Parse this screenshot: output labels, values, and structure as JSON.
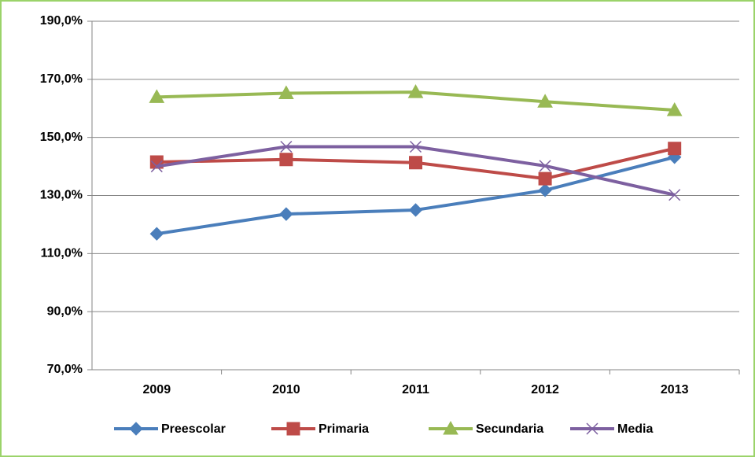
{
  "chart_data": {
    "type": "line",
    "categories": [
      "2009",
      "2010",
      "2011",
      "2012",
      "2013"
    ],
    "series": [
      {
        "name": "Preescolar",
        "color": "#4a7ebb",
        "marker": "diamond",
        "values": [
          116.8,
          123.6,
          125.0,
          131.8,
          143.2
        ]
      },
      {
        "name": "Primaria",
        "color": "#be4b48",
        "marker": "square",
        "values": [
          141.5,
          142.4,
          141.3,
          135.8,
          146.2
        ]
      },
      {
        "name": "Secundaria",
        "color": "#98b954",
        "marker": "triangle",
        "values": [
          163.9,
          165.2,
          165.6,
          162.3,
          159.4
        ]
      },
      {
        "name": "Media",
        "color": "#7d60a0",
        "marker": "x",
        "values": [
          140.0,
          146.8,
          146.8,
          140.2,
          130.2
        ]
      }
    ],
    "ylim": [
      70,
      190
    ],
    "yticks": [
      {
        "value": 70,
        "label": "70,0%"
      },
      {
        "value": 90,
        "label": "90,0%"
      },
      {
        "value": 110,
        "label": "110,0%"
      },
      {
        "value": 130,
        "label": "130,0%"
      },
      {
        "value": 150,
        "label": "150,0%"
      },
      {
        "value": 170,
        "label": "170,0%"
      },
      {
        "value": 190,
        "label": "190,0%"
      }
    ],
    "grid": true,
    "legend": "bottom"
  }
}
